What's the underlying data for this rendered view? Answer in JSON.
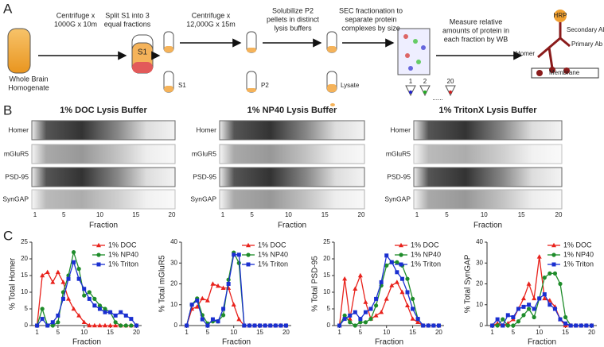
{
  "panel_labels": [
    "A",
    "B",
    "C"
  ],
  "panel_a": {
    "steps": [
      [
        "Centrifuge x",
        "1000G x 10m"
      ],
      [
        "Split S1 into 3",
        "equal fractions"
      ],
      [
        "Centrifuge x",
        "12,000G x 15m"
      ],
      [
        "Solubilize P2",
        "pellets in distinct",
        "lysis buffers"
      ],
      [
        "SEC fractionation to",
        "separate protein",
        "complexes by size"
      ],
      [
        "Measure relative",
        "amounts of protein in",
        "each fraction by WB"
      ]
    ],
    "homogenate": [
      "Whole Brain",
      "Homogenate"
    ],
    "tube_labels": [
      "S1",
      "S1",
      "P2",
      "Lysate"
    ],
    "fraction_labels": [
      "1",
      "2",
      "......",
      "20"
    ],
    "antibody": [
      "HRP",
      "Secondary Ab",
      "Primary Ab",
      "Homer",
      "Membrane"
    ]
  },
  "panel_b": {
    "blots": [
      "1% DOC Lysis Buffer",
      "1% NP40 Lysis Buffer",
      "1% TritonX Lysis Buffer"
    ],
    "rows": [
      "Homer",
      "mGluR5",
      "PSD-95",
      "SynGAP"
    ],
    "xticks": [
      1,
      5,
      10,
      15,
      20
    ],
    "xlabel": "Fraction"
  },
  "chart_data": [
    {
      "type": "line",
      "ylabel": "% Total Homer",
      "xlabel": "Fraction",
      "xlim": [
        0,
        21
      ],
      "xticks": [
        1,
        5,
        10,
        15,
        20
      ],
      "ylim": [
        0,
        25
      ],
      "yticks": [
        0,
        5,
        10,
        15,
        20,
        25
      ],
      "legend": "upper right",
      "x": [
        1,
        2,
        3,
        4,
        5,
        6,
        7,
        8,
        9,
        10,
        11,
        12,
        13,
        14,
        15,
        16,
        17,
        18,
        19,
        20
      ],
      "series": [
        {
          "name": "1% DOC",
          "color": "#e8221c",
          "marker": "triangle",
          "values": [
            0,
            15,
            16,
            13,
            16,
            13,
            8,
            5,
            3,
            1,
            0,
            0,
            0,
            0,
            0,
            0,
            0,
            0,
            0,
            0
          ]
        },
        {
          "name": "1% NP40",
          "color": "#1e8c2a",
          "marker": "circle",
          "values": [
            0,
            5,
            0,
            0,
            1,
            10,
            15,
            22,
            17,
            9,
            10,
            8,
            6,
            5,
            4,
            1,
            0,
            0,
            0,
            0
          ]
        },
        {
          "name": "1% Triton",
          "color": "#1a2fd0",
          "marker": "square",
          "values": [
            0,
            2,
            0,
            1,
            3,
            8,
            14,
            19,
            14,
            11,
            8,
            6,
            5,
            4,
            4,
            3,
            4,
            3,
            2,
            0
          ]
        }
      ]
    },
    {
      "type": "line",
      "ylabel": "% Total mGluR5",
      "xlabel": "Fraction",
      "xlim": [
        0,
        21
      ],
      "xticks": [
        1,
        5,
        10,
        15,
        20
      ],
      "ylim": [
        0,
        40
      ],
      "yticks": [
        0,
        10,
        20,
        30,
        40
      ],
      "legend": "upper right",
      "x": [
        1,
        2,
        3,
        4,
        5,
        6,
        7,
        8,
        9,
        10,
        11,
        12,
        13,
        14,
        15,
        16,
        17,
        18,
        19,
        20
      ],
      "series": [
        {
          "name": "1% DOC",
          "color": "#e8221c",
          "marker": "triangle",
          "values": [
            0,
            8,
            9,
            13,
            12,
            20,
            19,
            18,
            18,
            10,
            3,
            0,
            0,
            0,
            0,
            0,
            0,
            0,
            0,
            0
          ]
        },
        {
          "name": "1% NP40",
          "color": "#1e8c2a",
          "marker": "circle",
          "values": [
            0,
            10,
            13,
            5,
            1,
            2,
            2,
            5,
            22,
            35,
            30,
            0,
            0,
            0,
            0,
            0,
            0,
            0,
            0,
            0
          ]
        },
        {
          "name": "1% Triton",
          "color": "#1a2fd0",
          "marker": "square",
          "values": [
            0,
            10,
            12,
            3,
            0,
            3,
            2,
            8,
            20,
            34,
            34,
            0,
            0,
            0,
            0,
            0,
            0,
            0,
            0,
            0
          ]
        }
      ]
    },
    {
      "type": "line",
      "ylabel": "% Total PSD-95",
      "xlabel": "Fraction",
      "xlim": [
        0,
        21
      ],
      "xticks": [
        1,
        5,
        10,
        15,
        20
      ],
      "ylim": [
        0,
        25
      ],
      "yticks": [
        0,
        5,
        10,
        15,
        20,
        25
      ],
      "legend": "upper right",
      "x": [
        1,
        2,
        3,
        4,
        5,
        6,
        7,
        8,
        9,
        10,
        11,
        12,
        13,
        14,
        15,
        16,
        17,
        18,
        19,
        20
      ],
      "series": [
        {
          "name": "1% DOC",
          "color": "#e8221c",
          "marker": "triangle",
          "values": [
            0,
            14,
            2,
            11,
            15,
            7,
            2,
            3,
            4,
            8,
            12,
            13,
            10,
            6,
            2,
            1,
            0,
            0,
            0,
            0
          ]
        },
        {
          "name": "1% NP40",
          "color": "#1e8c2a",
          "marker": "circle",
          "values": [
            0,
            3,
            1,
            0,
            1,
            1,
            2,
            6,
            12,
            18,
            19,
            19,
            18,
            14,
            8,
            2,
            0,
            0,
            0,
            0
          ]
        },
        {
          "name": "1% Triton",
          "color": "#1a2fd0",
          "marker": "square",
          "values": [
            0,
            2,
            3,
            4,
            2,
            4,
            5,
            8,
            13,
            21,
            19,
            16,
            14,
            10,
            5,
            2,
            0,
            0,
            0,
            0
          ]
        }
      ]
    },
    {
      "type": "line",
      "ylabel": "% Total SynGAP",
      "xlabel": "Fraction",
      "xlim": [
        0,
        21
      ],
      "xticks": [
        1,
        5,
        10,
        15,
        20
      ],
      "ylim": [
        0,
        40
      ],
      "yticks": [
        0,
        10,
        20,
        30,
        40
      ],
      "legend": "upper right",
      "x": [
        1,
        2,
        3,
        4,
        5,
        6,
        7,
        8,
        9,
        10,
        11,
        12,
        13,
        14,
        15,
        16,
        17,
        18,
        19,
        20
      ],
      "series": [
        {
          "name": "1% DOC",
          "color": "#e8221c",
          "marker": "triangle",
          "values": [
            0,
            1,
            0,
            1,
            3,
            8,
            13,
            20,
            13,
            33,
            13,
            12,
            9,
            3,
            0,
            0,
            0,
            0,
            0,
            0
          ]
        },
        {
          "name": "1% NP40",
          "color": "#1e8c2a",
          "marker": "circle",
          "values": [
            0,
            0,
            3,
            0,
            0,
            2,
            5,
            8,
            4,
            13,
            23,
            25,
            25,
            20,
            4,
            0,
            0,
            0,
            0,
            0
          ]
        },
        {
          "name": "1% Triton",
          "color": "#1a2fd0",
          "marker": "square",
          "values": [
            0,
            3,
            0,
            5,
            4,
            8,
            9,
            10,
            8,
            13,
            15,
            10,
            8,
            3,
            1,
            0,
            0,
            0,
            0,
            0
          ]
        }
      ]
    }
  ]
}
